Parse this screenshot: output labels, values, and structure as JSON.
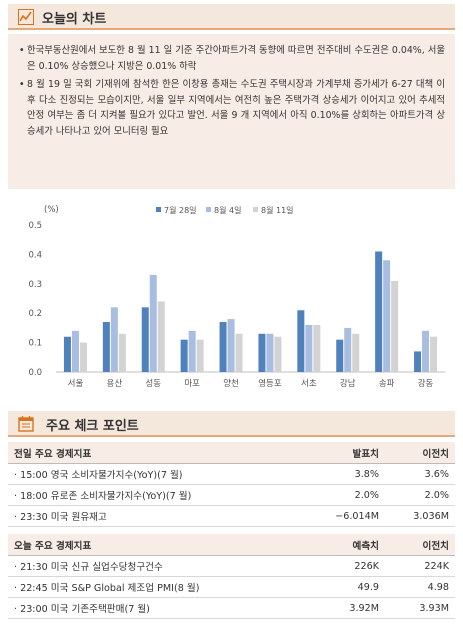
{
  "section1": {
    "title": "오늘의 차트",
    "icon": "line-chart-icon",
    "bullets": [
      "한국부동산원에서 보도한 8 월 11 일 기준 주간아파트가격 동향에 따르면 전주대비 수도권은 0.04%, 서울은 0.10% 상승했으나 지방은 0.01% 하락",
      "8 월 19 일 국회 기재위에 참석한 한은 이창용 총재는 수도권 주택시장과 가계부채 증가세가 6-27 대책 이후 다소 진정되는 모습이지만, 서울 일부 지역에서는 여전히 높은 주택가격 상승세가 이어지고 있어 추세적 안정 여부는 좀 더 지켜볼 필요가 있다고 발언. 서울 9 개 지역에서 아직 0.10%를 상회하는 아파트가격 상승세가 나타나고 있어 모니터링 필요"
    ]
  },
  "chart_data": {
    "type": "bar",
    "unit_label": "(%)",
    "categories": [
      "서울",
      "용산",
      "성동",
      "마포",
      "양천",
      "영등포",
      "서초",
      "강남",
      "송파",
      "강동"
    ],
    "series": [
      {
        "name": "7월 28일",
        "color": "#4f81bd",
        "values": [
          0.12,
          0.17,
          0.22,
          0.11,
          0.17,
          0.13,
          0.21,
          0.11,
          0.41,
          0.07
        ]
      },
      {
        "name": "8월 4일",
        "color": "#a9bde0",
        "values": [
          0.14,
          0.22,
          0.33,
          0.14,
          0.18,
          0.13,
          0.16,
          0.15,
          0.38,
          0.14
        ]
      },
      {
        "name": "8월 11일",
        "color": "#d3d3d3",
        "values": [
          0.1,
          0.13,
          0.24,
          0.11,
          0.13,
          0.12,
          0.16,
          0.13,
          0.31,
          0.12
        ]
      }
    ],
    "ylim": [
      0,
      0.5
    ],
    "yticks": [
      "0.0",
      "0.1",
      "0.2",
      "0.3",
      "0.4",
      "0.5"
    ],
    "grid": false,
    "legend": "top"
  },
  "section2": {
    "title": "주요 체크 포인트",
    "icon": "calendar-icon",
    "prev": {
      "header": [
        "전일 주요 경제지표",
        "발표치",
        "이전치"
      ],
      "rows": [
        [
          "· 15:00 영국 소비자물가지수(YoY)(7 월)",
          "3.8%",
          "3.6%"
        ],
        [
          "· 18:00 유로존 소비자물가지수(YoY)(7 월)",
          "2.0%",
          "2.0%"
        ],
        [
          "· 23:30 미국 원유재고",
          "−6.014M",
          "3.036M"
        ]
      ]
    },
    "today": {
      "header": [
        "오늘 주요 경제지표",
        "예측치",
        "이전치"
      ],
      "rows": [
        [
          "· 21:30 미국 신규 실업수당청구건수",
          "226K",
          "224K"
        ],
        [
          "· 22:45 미국 S&P Global 제조업 PMI(8 월)",
          "49.9",
          "4.98"
        ],
        [
          "· 23:00 미국 기존주택판매(7 월)",
          "3.92M",
          "3.93M"
        ]
      ]
    }
  }
}
